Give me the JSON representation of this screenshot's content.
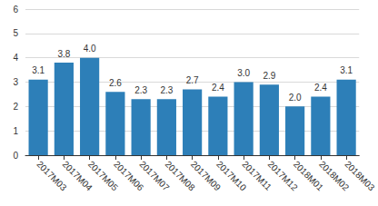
{
  "chart_data": {
    "type": "bar",
    "categories": [
      "2017M03",
      "2017M04",
      "2017M05",
      "2017M06",
      "2017M07",
      "2017M08",
      "2017M09",
      "2017M10",
      "2017M11",
      "2017M12",
      "2018M01",
      "2018M02",
      "2018M03"
    ],
    "values": [
      3.1,
      3.8,
      4.0,
      2.6,
      2.3,
      2.3,
      2.7,
      2.4,
      3.0,
      2.9,
      2.0,
      2.4,
      3.1
    ],
    "value_labels": [
      "3.1",
      "3.8",
      "4.0",
      "2.6",
      "2.3",
      "2.3",
      "2.7",
      "2.4",
      "3.0",
      "2.9",
      "2.0",
      "2.4",
      "3.1"
    ],
    "color": "#2d7fb8",
    "ylim": [
      0,
      6
    ],
    "yticks": [
      0,
      1,
      2,
      3,
      4,
      5,
      6
    ],
    "grid": true,
    "data_labels": true
  }
}
